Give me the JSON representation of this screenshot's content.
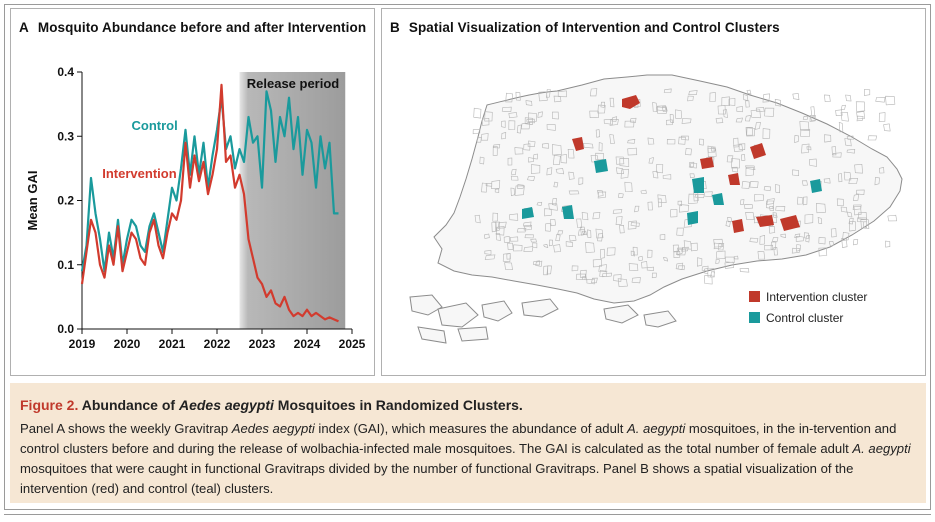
{
  "panel_a": {
    "letter": "A",
    "title": "Mosquito Abundance before and after Intervention"
  },
  "panel_b": {
    "letter": "B",
    "title": "Spatial Visualization of Intervention and Control Clusters",
    "legend": [
      {
        "label": "Intervention cluster",
        "color": "#c0392b"
      },
      {
        "label": "Control cluster",
        "color": "#1a9a9c"
      }
    ]
  },
  "colors": {
    "intervention": "#d23b2e",
    "control": "#1a9a9c",
    "release_shade": "#9e9e9e"
  },
  "chart_data": {
    "type": "line",
    "title": "Mosquito Abundance before and after Intervention",
    "xlabel": "",
    "ylabel": "Mean GAI",
    "xlim": [
      2019,
      2025
    ],
    "ylim": [
      0,
      0.4
    ],
    "x_ticks": [
      "2019",
      "2020",
      "2021",
      "2022",
      "2023",
      "2024",
      "2025"
    ],
    "y_ticks": [
      "0.0",
      "0.1",
      "0.2",
      "0.3",
      "0.4"
    ],
    "annotations": {
      "release_period": {
        "label": "Release period",
        "start": 2022.5,
        "end": 2024.85
      },
      "control_label": "Control",
      "intervention_label": "Intervention"
    },
    "series": [
      {
        "name": "Control",
        "x": [
          2019.0,
          2019.1,
          2019.2,
          2019.3,
          2019.4,
          2019.5,
          2019.6,
          2019.7,
          2019.8,
          2019.9,
          2020.0,
          2020.1,
          2020.2,
          2020.3,
          2020.4,
          2020.5,
          2020.6,
          2020.7,
          2020.8,
          2020.9,
          2021.0,
          2021.1,
          2021.2,
          2021.3,
          2021.4,
          2021.5,
          2021.6,
          2021.7,
          2021.8,
          2021.9,
          2022.0,
          2022.1,
          2022.2,
          2022.3,
          2022.4,
          2022.5,
          2022.6,
          2022.7,
          2022.8,
          2022.9,
          2023.0,
          2023.1,
          2023.2,
          2023.3,
          2023.4,
          2023.5,
          2023.6,
          2023.7,
          2023.8,
          2023.9,
          2024.0,
          2024.1,
          2024.2,
          2024.3,
          2024.4,
          2024.5,
          2024.6,
          2024.7
        ],
        "values": [
          0.09,
          0.13,
          0.235,
          0.18,
          0.14,
          0.09,
          0.15,
          0.11,
          0.17,
          0.1,
          0.14,
          0.17,
          0.16,
          0.13,
          0.12,
          0.16,
          0.18,
          0.15,
          0.12,
          0.17,
          0.22,
          0.2,
          0.25,
          0.31,
          0.24,
          0.3,
          0.24,
          0.29,
          0.22,
          0.27,
          0.31,
          0.36,
          0.28,
          0.3,
          0.25,
          0.28,
          0.26,
          0.33,
          0.29,
          0.3,
          0.22,
          0.37,
          0.34,
          0.26,
          0.33,
          0.3,
          0.36,
          0.28,
          0.33,
          0.24,
          0.31,
          0.29,
          0.22,
          0.3,
          0.25,
          0.29,
          0.18,
          0.18
        ]
      },
      {
        "name": "Intervention",
        "x": [
          2019.0,
          2019.1,
          2019.2,
          2019.3,
          2019.4,
          2019.5,
          2019.6,
          2019.7,
          2019.8,
          2019.9,
          2020.0,
          2020.1,
          2020.2,
          2020.3,
          2020.4,
          2020.5,
          2020.6,
          2020.7,
          2020.8,
          2020.9,
          2021.0,
          2021.1,
          2021.2,
          2021.3,
          2021.4,
          2021.5,
          2021.6,
          2021.7,
          2021.8,
          2021.9,
          2022.0,
          2022.1,
          2022.2,
          2022.3,
          2022.4,
          2022.5,
          2022.6,
          2022.7,
          2022.8,
          2022.9,
          2023.0,
          2023.1,
          2023.2,
          2023.3,
          2023.4,
          2023.5,
          2023.6,
          2023.7,
          2023.8,
          2023.9,
          2024.0,
          2024.1,
          2024.2,
          2024.3,
          2024.4,
          2024.5,
          2024.6,
          2024.7
        ],
        "values": [
          0.07,
          0.12,
          0.17,
          0.15,
          0.1,
          0.08,
          0.13,
          0.1,
          0.16,
          0.09,
          0.12,
          0.15,
          0.14,
          0.11,
          0.1,
          0.15,
          0.17,
          0.13,
          0.11,
          0.15,
          0.18,
          0.17,
          0.2,
          0.29,
          0.22,
          0.27,
          0.23,
          0.26,
          0.21,
          0.24,
          0.28,
          0.38,
          0.26,
          0.27,
          0.22,
          0.24,
          0.21,
          0.14,
          0.11,
          0.08,
          0.07,
          0.05,
          0.06,
          0.04,
          0.035,
          0.05,
          0.03,
          0.02,
          0.025,
          0.02,
          0.03,
          0.02,
          0.025,
          0.02,
          0.015,
          0.018,
          0.015,
          0.012
        ]
      }
    ]
  },
  "caption": {
    "label": "Figure 2.",
    "title_pre": "Abundance of ",
    "title_italic": "Aedes aegypti",
    "title_post": " Mosquitoes in Randomized Clusters.",
    "body_1": "Panel A shows the weekly Gravitrap ",
    "body_italic_1": "Aedes aegypti",
    "body_2": " index (GAI), which measures the abundance of adult ",
    "body_italic_2": "A. aegypti",
    "body_3": " mosquitoes, in the in-tervention and control clusters before and during the release of wolbachia-infected male mosquitoes. The GAI is calculated as the total number of female adult ",
    "body_italic_3": "A. aegypti",
    "body_4": " mosquitoes that were caught in functional Gravitraps divided by the number of functional Gravitraps. Panel B shows a spatial visualization of the intervention (red) and control (teal) clusters."
  }
}
